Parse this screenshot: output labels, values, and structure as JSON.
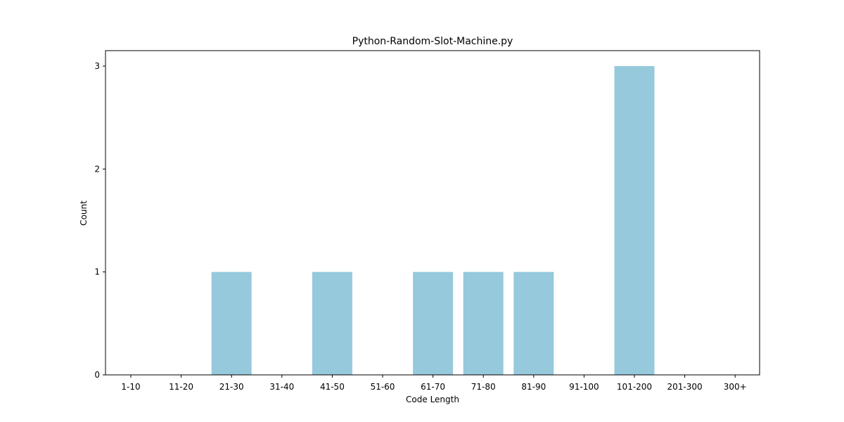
{
  "chart_data": {
    "type": "bar",
    "title": "Python-Random-Slot-Machine.py",
    "xlabel": "Code Length",
    "ylabel": "Count",
    "categories": [
      "1-10",
      "11-20",
      "21-30",
      "31-40",
      "41-50",
      "51-60",
      "61-70",
      "71-80",
      "81-90",
      "91-100",
      "101-200",
      "201-300",
      "300+"
    ],
    "values": [
      0,
      0,
      1,
      0,
      1,
      0,
      1,
      1,
      1,
      0,
      3,
      0,
      0
    ],
    "ylim": [
      0,
      3.15
    ],
    "yticks": [
      0,
      1,
      2,
      3
    ],
    "bar_color": "#96c9dc",
    "grid": false,
    "legend": "none"
  }
}
